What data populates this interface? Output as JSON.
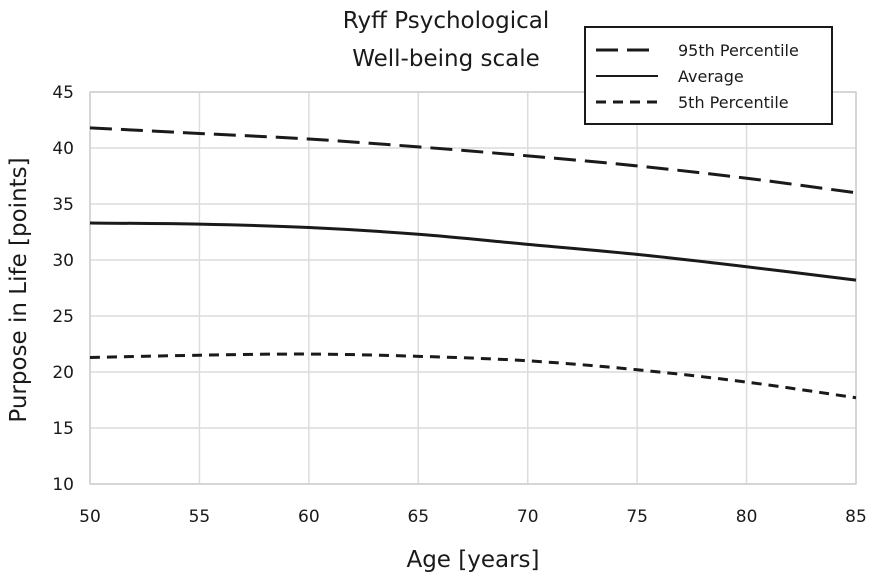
{
  "chart_data": {
    "type": "line",
    "title_lines": [
      "Ryff Psychological",
      "Well-being scale"
    ],
    "xlabel": "Age [years]",
    "ylabel": "Purpose in Life [points]",
    "xlim": [
      50,
      85
    ],
    "ylim": [
      10,
      45
    ],
    "x_ticks": [
      "50",
      "55",
      "60",
      "65",
      "70",
      "75",
      "80",
      "85"
    ],
    "y_ticks": [
      "10",
      "15",
      "20",
      "25",
      "30",
      "35",
      "40",
      "45"
    ],
    "grid": true,
    "legend_position": "top-right",
    "x": [
      50,
      55,
      60,
      65,
      70,
      75,
      80,
      85
    ],
    "series": [
      {
        "name": "95th Percentile",
        "style": "long-dash",
        "values": [
          41.8,
          41.3,
          40.8,
          40.1,
          39.3,
          38.4,
          37.3,
          36.0
        ]
      },
      {
        "name": "Average",
        "style": "solid",
        "values": [
          33.3,
          33.2,
          32.9,
          32.3,
          31.4,
          30.5,
          29.4,
          28.2
        ]
      },
      {
        "name": "5th Percentile",
        "style": "short-dash",
        "values": [
          21.3,
          21.5,
          21.6,
          21.4,
          21.0,
          20.2,
          19.1,
          17.7
        ]
      }
    ],
    "colors": {
      "line": "#1a1a1a",
      "grid": "#dcdcdc",
      "legend_border": "#1a1a1a"
    }
  }
}
